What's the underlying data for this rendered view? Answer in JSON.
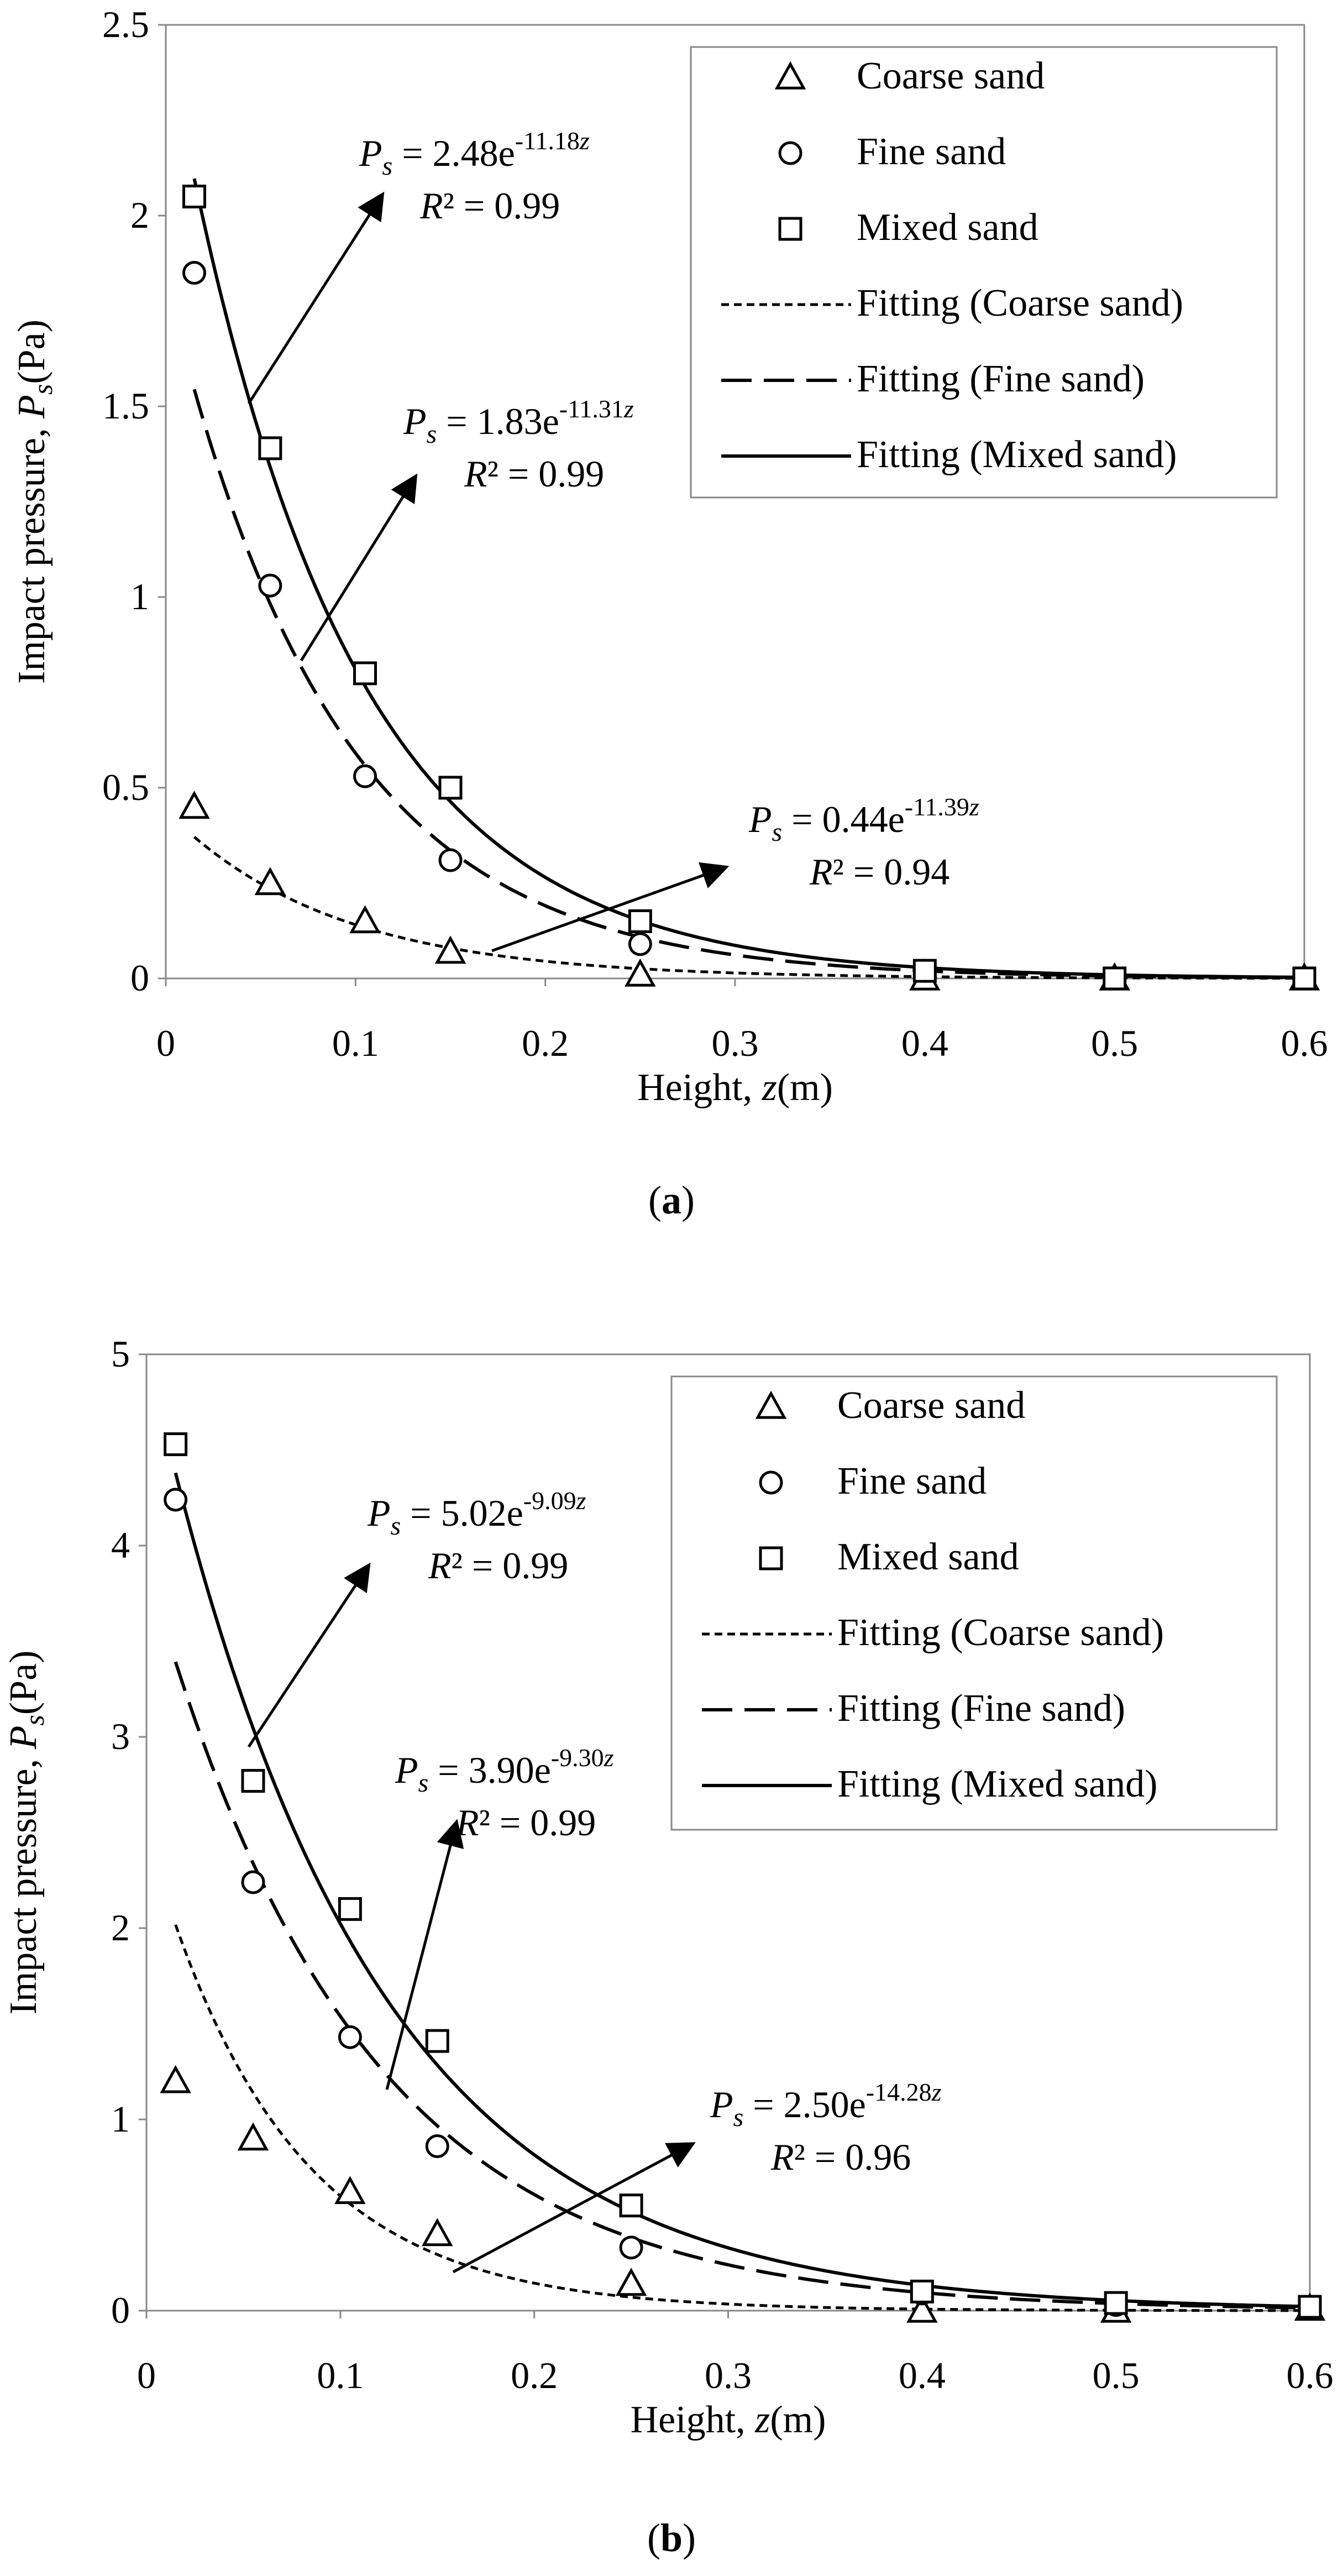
{
  "chart_data": [
    {
      "type": "scatter",
      "panel": "a",
      "caption": "(a)",
      "xlabel_prefix": "Height, ",
      "xlabel_var": "z",
      "xlabel_suffix": "(m)",
      "ylabel_prefix": "Impact pressure, ",
      "ylabel_var": "P",
      "ylabel_sub": "s",
      "ylabel_suffix": "(Pa)",
      "xlim": [
        0,
        0.6
      ],
      "ylim": [
        0,
        2.5
      ],
      "xticks": [
        0,
        0.1,
        0.2,
        0.3,
        0.4,
        0.5,
        0.6
      ],
      "xtick_labels": [
        "0",
        "0.1",
        "0.2",
        "0.3",
        "0.4",
        "0.5",
        "0.6"
      ],
      "yticks": [
        0,
        0.5,
        1,
        1.5,
        2,
        2.5
      ],
      "ytick_labels": [
        "0",
        "0.5",
        "1",
        "1.5",
        "2",
        "2.5"
      ],
      "grid": false,
      "legend_position": "top-right",
      "series": [
        {
          "name": "Coarse sand",
          "marker": "triangle",
          "x": [
            0.015,
            0.055,
            0.105,
            0.15,
            0.25,
            0.4,
            0.5,
            0.6
          ],
          "y": [
            0.45,
            0.25,
            0.15,
            0.07,
            0.01,
            0.0,
            0.0,
            0.0
          ]
        },
        {
          "name": "Fine sand",
          "marker": "circle",
          "x": [
            0.015,
            0.055,
            0.105,
            0.15,
            0.25,
            0.4,
            0.5,
            0.6
          ],
          "y": [
            1.85,
            1.03,
            0.53,
            0.31,
            0.09,
            0.02,
            0.0,
            0.0
          ]
        },
        {
          "name": "Mixed sand",
          "marker": "square",
          "x": [
            0.015,
            0.055,
            0.105,
            0.15,
            0.25,
            0.4,
            0.5,
            0.6
          ],
          "y": [
            2.05,
            1.39,
            0.8,
            0.5,
            0.15,
            0.02,
            0.0,
            0.0
          ]
        }
      ],
      "fits": [
        {
          "name": "Fitting (Coarse sand)",
          "style": "dotted",
          "a": 0.44,
          "b": 11.39,
          "x_start": 0.015
        },
        {
          "name": "Fitting (Fine sand)",
          "style": "dashed",
          "a": 1.83,
          "b": 11.31,
          "x_start": 0.015
        },
        {
          "name": "Fitting (Mixed sand)",
          "style": "solid",
          "a": 2.48,
          "b": 11.18,
          "x_start": 0.015
        }
      ],
      "annotations": [
        {
          "coef": "2.48",
          "exp": "-11.18",
          "r2": "R² = 0.99",
          "fit": "Mixed sand"
        },
        {
          "coef": "1.83",
          "exp": "-11.31",
          "r2": "R² = 0.99",
          "fit": "Fine sand"
        },
        {
          "coef": "0.44",
          "exp": "-11.39",
          "r2": "R² = 0.94",
          "fit": "Coarse sand"
        }
      ]
    },
    {
      "type": "scatter",
      "panel": "b",
      "caption": "(b)",
      "xlabel_prefix": "Height, ",
      "xlabel_var": "z",
      "xlabel_suffix": "(m)",
      "ylabel_prefix": "Impact pressure, ",
      "ylabel_var": "P",
      "ylabel_sub": "s",
      "ylabel_suffix": "(Pa)",
      "xlim": [
        0,
        0.6
      ],
      "ylim": [
        0,
        5
      ],
      "xticks": [
        0,
        0.1,
        0.2,
        0.3,
        0.4,
        0.5,
        0.6
      ],
      "xtick_labels": [
        "0",
        "0.1",
        "0.2",
        "0.3",
        "0.4",
        "0.5",
        "0.6"
      ],
      "yticks": [
        0,
        1,
        2,
        3,
        4,
        5
      ],
      "ytick_labels": [
        "0",
        "1",
        "2",
        "3",
        "4",
        "5"
      ],
      "grid": false,
      "legend_position": "top-right",
      "series": [
        {
          "name": "Coarse sand",
          "marker": "triangle",
          "x": [
            0.015,
            0.055,
            0.105,
            0.15,
            0.25,
            0.4,
            0.5,
            0.6
          ],
          "y": [
            1.2,
            0.9,
            0.62,
            0.4,
            0.14,
            0.0,
            0.0,
            0.01
          ]
        },
        {
          "name": "Fine sand",
          "marker": "circle",
          "x": [
            0.015,
            0.055,
            0.105,
            0.15,
            0.25,
            0.4,
            0.5,
            0.6
          ],
          "y": [
            4.24,
            2.24,
            1.43,
            0.86,
            0.33,
            0.09,
            0.03,
            0.02
          ]
        },
        {
          "name": "Mixed sand",
          "marker": "square",
          "x": [
            0.015,
            0.055,
            0.105,
            0.15,
            0.25,
            0.4,
            0.5,
            0.6
          ],
          "y": [
            4.53,
            2.77,
            2.1,
            1.41,
            0.55,
            0.1,
            0.04,
            0.02
          ]
        }
      ],
      "fits": [
        {
          "name": "Fitting (Coarse sand)",
          "style": "dotted",
          "a": 2.5,
          "b": 14.28,
          "x_start": 0.015
        },
        {
          "name": "Fitting (Fine sand)",
          "style": "dashed",
          "a": 3.9,
          "b": 9.3,
          "x_start": 0.015
        },
        {
          "name": "Fitting (Mixed sand)",
          "style": "solid",
          "a": 5.02,
          "b": 9.09,
          "x_start": 0.015
        }
      ],
      "annotations": [
        {
          "coef": "5.02",
          "exp": "-9.09",
          "r2": "R² = 0.99",
          "fit": "Mixed sand"
        },
        {
          "coef": "3.90",
          "exp": "-9.30",
          "r2": "R² = 0.99",
          "fit": "Fine sand"
        },
        {
          "coef": "2.50",
          "exp": "-14.28",
          "r2": "R² = 0.96",
          "fit": "Coarse sand"
        }
      ]
    }
  ]
}
